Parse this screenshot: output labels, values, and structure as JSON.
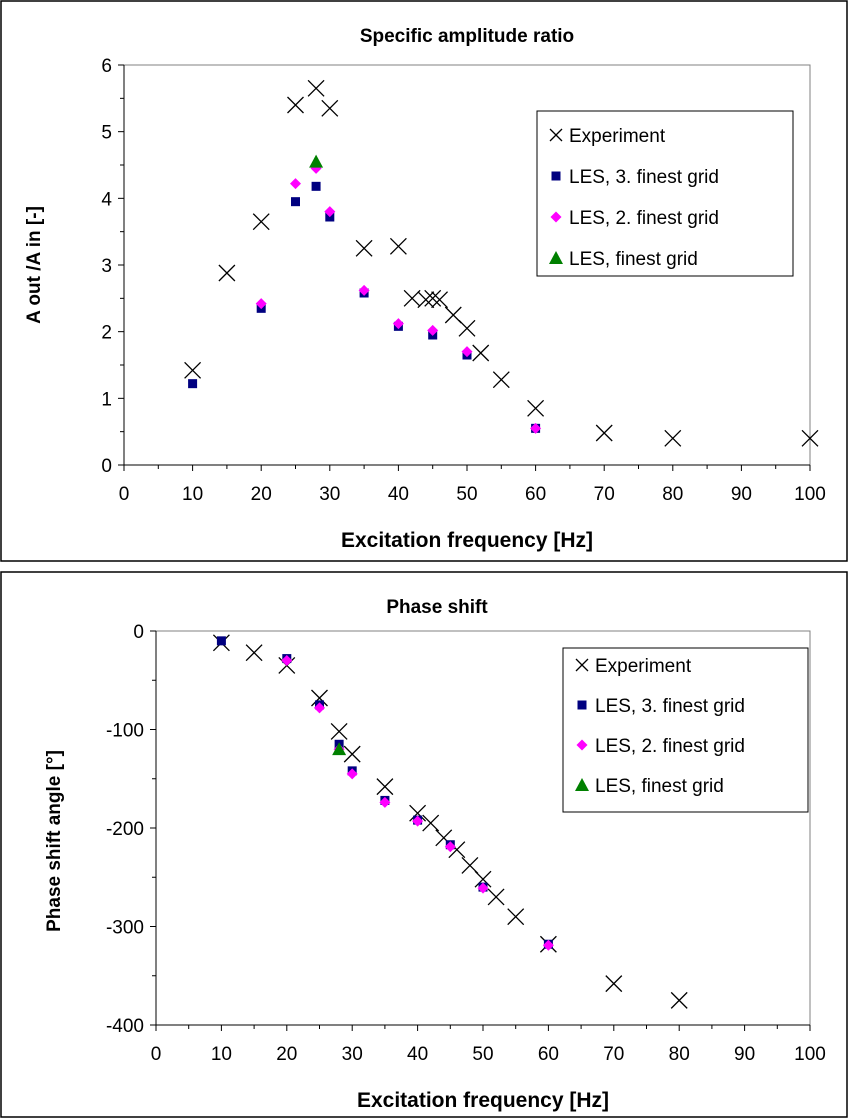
{
  "colors": {
    "experiment": "#000000",
    "les_3_finest": "#000080",
    "les_2_finest": "#ff00ff",
    "les_finest": "#008000",
    "frame": "#000000",
    "plot_border": "#808080"
  },
  "chart_data": [
    {
      "type": "scatter",
      "title": "Specific amplitude ratio",
      "xlabel": "Excitation frequency [Hz]",
      "ylabel": "A out /A in [-]",
      "xlim": [
        0,
        100
      ],
      "ylim": [
        0,
        6
      ],
      "xticks": [
        0,
        10,
        20,
        30,
        40,
        50,
        60,
        70,
        80,
        90,
        100
      ],
      "yticks": [
        0,
        1,
        2,
        3,
        4,
        5,
        6
      ],
      "grid": false,
      "legend": "top-right",
      "series": [
        {
          "name": "Experiment",
          "marker": "x",
          "x": [
            10,
            15,
            20,
            25,
            28,
            30,
            35,
            40,
            42,
            44,
            45,
            46,
            48,
            50,
            52,
            55,
            60,
            70,
            80,
            100
          ],
          "y": [
            1.42,
            2.88,
            3.65,
            5.4,
            5.65,
            5.35,
            3.25,
            3.28,
            2.5,
            2.48,
            2.5,
            2.48,
            2.25,
            2.05,
            1.68,
            1.28,
            0.85,
            0.48,
            0.4,
            0.4
          ]
        },
        {
          "name": "LES, 3. finest grid",
          "marker": "square",
          "x": [
            10,
            20,
            25,
            28,
            30,
            35,
            40,
            45,
            50,
            60
          ],
          "y": [
            1.22,
            2.35,
            3.95,
            4.18,
            3.72,
            2.58,
            2.08,
            1.95,
            1.65,
            0.55
          ]
        },
        {
          "name": "LES, 2. finest grid",
          "marker": "diamond",
          "x": [
            20,
            25,
            28,
            30,
            35,
            40,
            45,
            50,
            60
          ],
          "y": [
            2.42,
            4.22,
            4.45,
            3.8,
            2.62,
            2.12,
            2.02,
            1.7,
            0.55
          ]
        },
        {
          "name": "LES, finest grid",
          "marker": "triangle",
          "x": [
            28
          ],
          "y": [
            4.55
          ]
        }
      ]
    },
    {
      "type": "scatter",
      "title": "Phase shift",
      "xlabel": "Excitation frequency [Hz]",
      "ylabel": "Phase shift angle [°]",
      "xlim": [
        0,
        100
      ],
      "ylim": [
        -400,
        0
      ],
      "xticks": [
        0,
        10,
        20,
        30,
        40,
        50,
        60,
        70,
        80,
        90,
        100
      ],
      "yticks": [
        0,
        -100,
        -200,
        -300,
        -400
      ],
      "grid": false,
      "legend": "top-right",
      "series": [
        {
          "name": "Experiment",
          "marker": "x",
          "x": [
            10,
            15,
            20,
            25,
            28,
            30,
            35,
            40,
            42,
            44,
            46,
            48,
            50,
            52,
            55,
            60,
            70,
            80
          ],
          "y": [
            -12,
            -22,
            -35,
            -68,
            -102,
            -125,
            -158,
            -185,
            -195,
            -210,
            -222,
            -238,
            -252,
            -270,
            -290,
            -318,
            -358,
            -375
          ]
        },
        {
          "name": "LES, 3. finest grid",
          "marker": "square",
          "x": [
            10,
            20,
            25,
            28,
            30,
            35,
            40,
            45,
            50,
            60
          ],
          "y": [
            -10,
            -28,
            -75,
            -115,
            -142,
            -172,
            -192,
            -217,
            -260,
            -318
          ]
        },
        {
          "name": "LES, 2. finest grid",
          "marker": "diamond",
          "x": [
            20,
            25,
            28,
            30,
            35,
            40,
            45,
            50,
            60
          ],
          "y": [
            -30,
            -78,
            -120,
            -145,
            -174,
            -193,
            -219,
            -261,
            -319
          ]
        },
        {
          "name": "LES, finest grid",
          "marker": "triangle",
          "x": [
            28
          ],
          "y": [
            -120
          ]
        }
      ]
    }
  ]
}
